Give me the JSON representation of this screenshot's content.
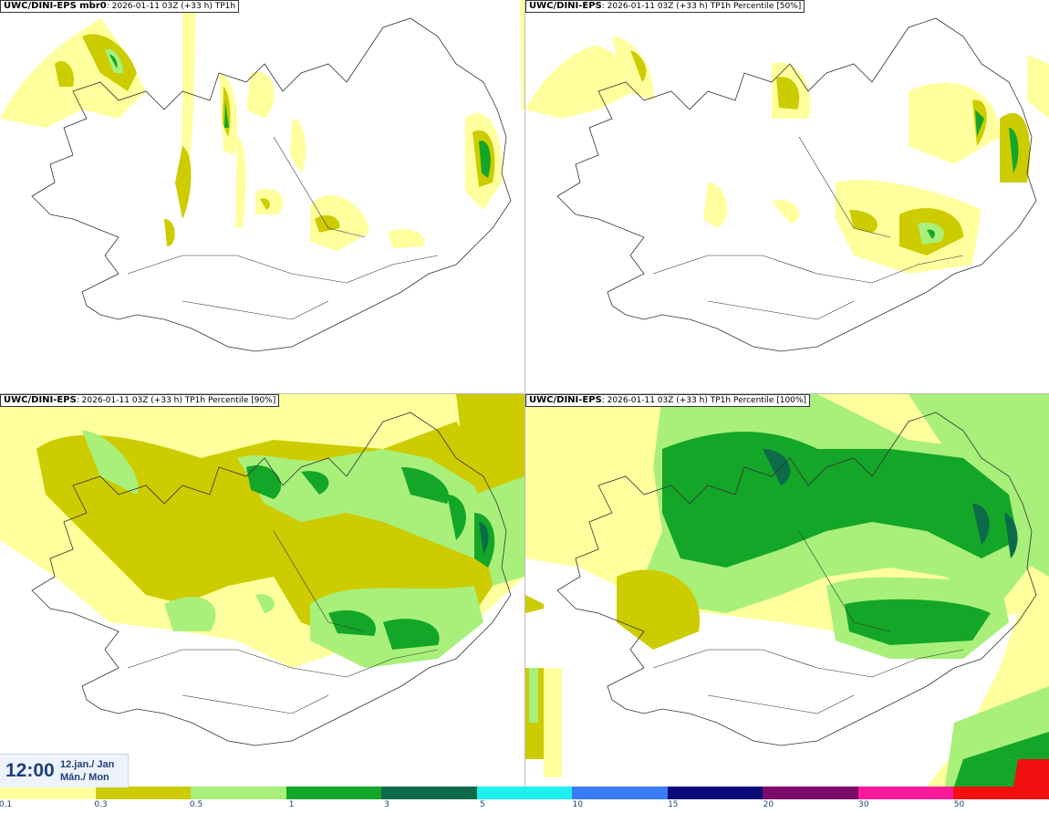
{
  "panels": [
    {
      "model": "UWC/DINI-EPS",
      "variant": " mbr0",
      "meta": ": 2026-01-11 03Z (+33 h) TP1h"
    },
    {
      "model": "UWC/DINI-EPS",
      "variant": "",
      "meta": ": 2026-01-11 03Z (+33 h) TP1h Percentile [50%]"
    },
    {
      "model": "UWC/DINI-EPS",
      "variant": "",
      "meta": ": 2026-01-11 03Z (+33 h) TP1h Percentile [90%]"
    },
    {
      "model": "UWC/DINI-EPS",
      "variant": "",
      "meta": ": 2026-01-11 03Z (+33 h) TP1h Percentile [100%]"
    }
  ],
  "valid_time": {
    "time": "12:00",
    "date_line1": "12.jan./ Jan",
    "date_line2": "Mán./ Mon"
  },
  "legend": {
    "thresholds": [
      "0.1",
      "0.3",
      "0.5",
      "1",
      "3",
      "5",
      "10",
      "15",
      "20",
      "30",
      "50"
    ],
    "colors": [
      "#ffff9e",
      "#cccc00",
      "#a8f07a",
      "#14a628",
      "#0e6b4a",
      "#1ef0f0",
      "#3b7bf5",
      "#0a0a7a",
      "#7a0a6b",
      "#ff1a9c",
      "#f01010"
    ]
  },
  "map_colors": {
    "light": "#ffff9e",
    "olive": "#cccc00",
    "lightgreen": "#a8f07a",
    "green": "#14a628",
    "darkgreen": "#0e6b4a"
  }
}
